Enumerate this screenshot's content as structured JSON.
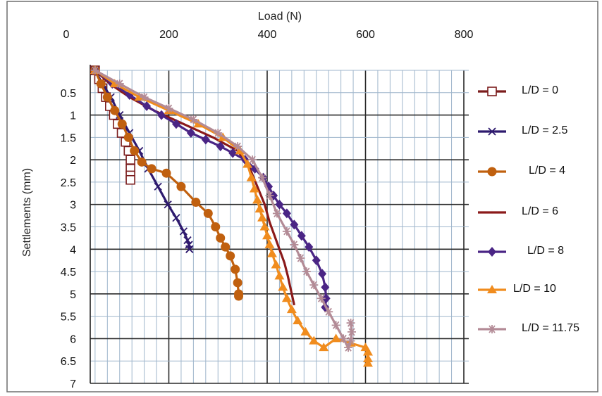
{
  "chart_data": {
    "type": "line",
    "title": "",
    "xlabel": "Load (N)",
    "ylabel": "Settlements (mm)",
    "x_axis_position": "top",
    "y_axis_inverted": true,
    "xlim": [
      0,
      800
    ],
    "ylim": [
      0,
      7
    ],
    "x_ticks": [
      "0",
      "200",
      "400",
      "600",
      "800"
    ],
    "x_tick_values": [
      0,
      200,
      400,
      600,
      800
    ],
    "y_ticks": [
      "0.5",
      "1",
      "1.5",
      "2",
      "2.5",
      "3",
      "3.5",
      "4",
      "4.5",
      "5",
      "5.5",
      "6",
      "6.5",
      "7"
    ],
    "y_tick_values": [
      0.5,
      1,
      1.5,
      2,
      2.5,
      3,
      3.5,
      4,
      4.5,
      5,
      5.5,
      6,
      6.5,
      7
    ],
    "grid": true,
    "legend_position": "right",
    "series": [
      {
        "name": "L/D = 0",
        "color": "#7b1c1c",
        "marker": "square-open",
        "x": [
          50,
          58,
          65,
          72,
          80,
          88,
          96,
          104,
          112,
          118,
          122,
          122,
          122,
          122
        ],
        "y": [
          0.0,
          0.2,
          0.4,
          0.6,
          0.8,
          1.0,
          1.2,
          1.4,
          1.6,
          1.8,
          2.0,
          2.2,
          2.35,
          2.45
        ]
      },
      {
        "name": "L/D = 2.5",
        "color": "#2e1a6e",
        "marker": "x",
        "x": [
          50,
          65,
          82,
          100,
          120,
          140,
          158,
          178,
          198,
          215,
          230,
          238,
          241,
          242,
          242
        ],
        "y": [
          0.0,
          0.3,
          0.6,
          1.0,
          1.4,
          1.8,
          2.2,
          2.6,
          3.0,
          3.3,
          3.6,
          3.8,
          3.9,
          4.0,
          4.0
        ]
      },
      {
        "name": "L/D = 4",
        "color": "#c0600f",
        "marker": "circle",
        "x": [
          50,
          62,
          75,
          90,
          105,
          118,
          130,
          145,
          165,
          195,
          225,
          255,
          280,
          295,
          305,
          315,
          325,
          335,
          340,
          342,
          342
        ],
        "y": [
          0.0,
          0.3,
          0.6,
          0.9,
          1.2,
          1.5,
          1.8,
          2.05,
          2.2,
          2.3,
          2.6,
          2.95,
          3.2,
          3.5,
          3.75,
          3.95,
          4.15,
          4.45,
          4.75,
          5.0,
          5.05
        ]
      },
      {
        "name": "L/D = 6",
        "color": "#8b1a1a",
        "marker": "none",
        "x": [
          50,
          80,
          120,
          170,
          230,
          290,
          340,
          365,
          380,
          395,
          405,
          415,
          425,
          435,
          442,
          448,
          452,
          455
        ],
        "y": [
          0.0,
          0.3,
          0.6,
          0.9,
          1.2,
          1.5,
          1.8,
          2.2,
          2.6,
          3.0,
          3.4,
          3.7,
          4.0,
          4.3,
          4.6,
          4.9,
          5.1,
          5.25
        ]
      },
      {
        "name": "L/D = 8",
        "color": "#4a2585",
        "marker": "diamond",
        "x": [
          50,
          85,
          120,
          155,
          185,
          215,
          245,
          275,
          305,
          330,
          355,
          375,
          392,
          403,
          413,
          425,
          440,
          455,
          470,
          485,
          500,
          512,
          518,
          520,
          518
        ],
        "y": [
          0.0,
          0.3,
          0.55,
          0.8,
          1.0,
          1.2,
          1.4,
          1.55,
          1.7,
          1.85,
          2.0,
          2.2,
          2.4,
          2.6,
          2.8,
          3.0,
          3.2,
          3.45,
          3.7,
          3.95,
          4.25,
          4.55,
          4.85,
          5.1,
          5.3
        ]
      },
      {
        "name": "L/D = 10",
        "color": "#f08c1e",
        "marker": "triangle",
        "x": [
          50,
          90,
          140,
          200,
          260,
          310,
          345,
          360,
          368,
          374,
          380,
          385,
          390,
          395,
          400,
          405,
          410,
          418,
          425,
          432,
          440,
          450,
          462,
          478,
          495,
          515,
          540,
          570,
          600,
          605,
          605,
          605
        ],
        "y": [
          0.0,
          0.3,
          0.6,
          0.9,
          1.2,
          1.5,
          1.8,
          2.1,
          2.4,
          2.65,
          2.9,
          3.1,
          3.3,
          3.5,
          3.7,
          3.9,
          4.1,
          4.35,
          4.6,
          4.85,
          5.1,
          5.35,
          5.6,
          5.85,
          6.05,
          6.2,
          6.0,
          6.1,
          6.2,
          6.3,
          6.45,
          6.55
        ]
      },
      {
        "name": "L/D = 11.75",
        "color": "#b38b96",
        "marker": "asterisk",
        "x": [
          50,
          100,
          150,
          200,
          250,
          300,
          340,
          370,
          390,
          405,
          420,
          440,
          455,
          468,
          480,
          495,
          510,
          525,
          540,
          555,
          565,
          570,
          572,
          570
        ],
        "y": [
          0.0,
          0.3,
          0.6,
          0.85,
          1.1,
          1.4,
          1.7,
          2.0,
          2.4,
          2.8,
          3.2,
          3.6,
          3.9,
          4.2,
          4.5,
          4.8,
          5.1,
          5.4,
          5.7,
          6.0,
          6.2,
          6.05,
          5.85,
          5.65
        ]
      }
    ]
  }
}
